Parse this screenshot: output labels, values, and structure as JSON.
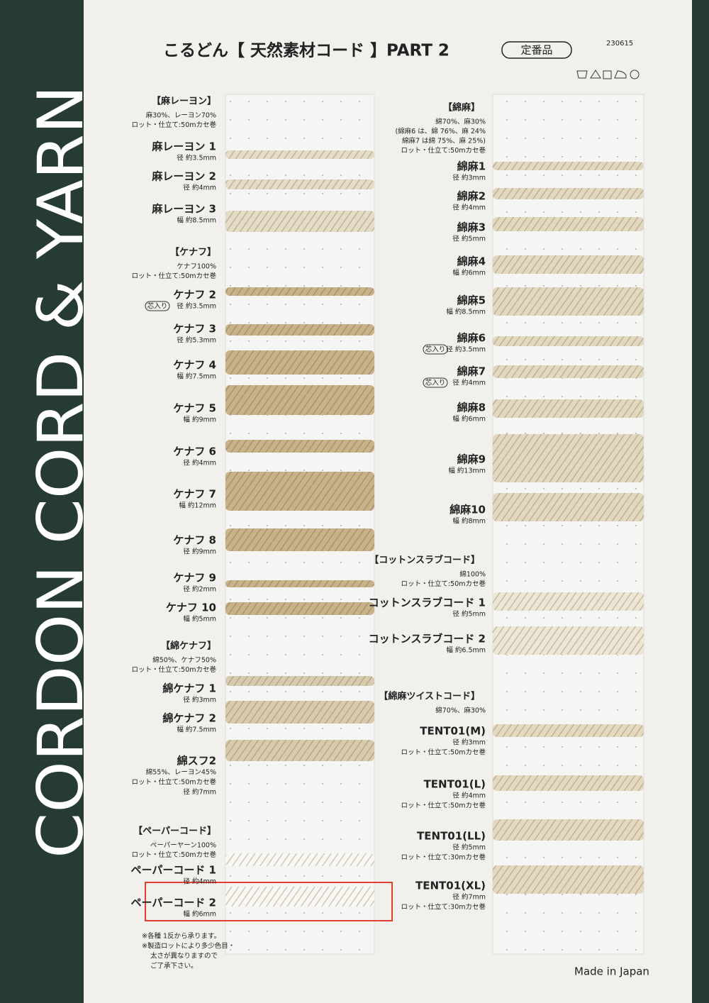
{
  "side_text": "CORDON CORD & YARN",
  "header": {
    "title": "こるどん【 天然素材コード 】PART 2",
    "badge": "定番品",
    "code": "230615"
  },
  "left": {
    "groups": [
      {
        "heading": "【麻レーヨン】",
        "desc": [
          "麻30%、レーヨン70%",
          "ロット・仕立て:50mカセ巻"
        ],
        "items": [
          {
            "name": "麻レーヨン 1",
            "specs": [
              "径 約3.5mm"
            ]
          },
          {
            "name": "麻レーヨン 2",
            "specs": [
              "径 約4mm"
            ]
          },
          {
            "name": "麻レーヨン 3",
            "specs": [
              "幅 約8.5mm"
            ]
          }
        ]
      },
      {
        "heading": "【ケナフ】",
        "desc": [
          "ケナフ100%",
          "ロット・仕立て:50mカセ巻"
        ],
        "items": [
          {
            "name": "ケナフ 2",
            "tag": "芯入り",
            "specs": [
              "径 約3.5mm"
            ]
          },
          {
            "name": "ケナフ 3",
            "specs": [
              "径 約5.3mm"
            ]
          },
          {
            "name": "ケナフ 4",
            "specs": [
              "幅 約7.5mm"
            ]
          },
          {
            "name": "ケナフ 5",
            "specs": [
              "幅 約9mm"
            ]
          },
          {
            "name": "ケナフ 6",
            "specs": [
              "径 約4mm"
            ]
          },
          {
            "name": "ケナフ 7",
            "specs": [
              "幅 約12mm"
            ]
          },
          {
            "name": "ケナフ 8",
            "specs": [
              "径 約9mm"
            ]
          },
          {
            "name": "ケナフ 9",
            "specs": [
              "径 約2mm"
            ]
          },
          {
            "name": "ケナフ 10",
            "specs": [
              "幅 約5mm"
            ]
          }
        ]
      },
      {
        "heading": "【綿ケナフ】",
        "desc": [
          "綿50%、ケナフ50%",
          "ロット・仕立て:50mカセ巻"
        ],
        "items": [
          {
            "name": "綿ケナフ 1",
            "specs": [
              "径 約3mm"
            ]
          },
          {
            "name": "綿ケナフ 2",
            "specs": [
              "幅 約7.5mm"
            ]
          },
          {
            "name": "綿スフ2",
            "specs": [
              "綿55%、レーヨン45%",
              "ロット・仕立て:50mカセ巻",
              "径 約7mm"
            ]
          }
        ]
      },
      {
        "heading": "【ペーパーコード】",
        "desc": [
          "ペーパーヤーン100%",
          "ロット・仕立て:50mカセ巻"
        ],
        "items": [
          {
            "name": "ペーパーコード 1",
            "specs": [
              "径 約4mm"
            ]
          },
          {
            "name": "ペーパーコード 2",
            "specs": [
              "幅 約6mm"
            ]
          }
        ]
      }
    ]
  },
  "notes": [
    "※各種 1反から承ります。",
    "※製造ロットにより多少色目・",
    "太さが異なりますので",
    "ご了承下さい。"
  ],
  "right": {
    "groups": [
      {
        "heading": "【綿麻】",
        "desc": [
          "綿70%、麻30%",
          "(綿麻6 は、綿 76%、麻 24%",
          "綿麻7 は綿 75%、麻 25%)",
          "ロット・仕立て:50mカセ巻"
        ],
        "items": [
          {
            "name": "綿麻1",
            "specs": [
              "径 約3mm"
            ]
          },
          {
            "name": "綿麻2",
            "specs": [
              "径 約4mm"
            ]
          },
          {
            "name": "綿麻3",
            "specs": [
              "径 約5mm"
            ]
          },
          {
            "name": "綿麻4",
            "specs": [
              "幅 約6mm"
            ]
          },
          {
            "name": "綿麻5",
            "specs": [
              "幅 約8.5mm"
            ]
          },
          {
            "name": "綿麻6",
            "tag": "芯入り",
            "specs": [
              "径 約3.5mm"
            ]
          },
          {
            "name": "綿麻7",
            "tag": "芯入り",
            "specs": [
              "径 約4mm"
            ]
          },
          {
            "name": "綿麻8",
            "specs": [
              "幅 約6mm"
            ]
          },
          {
            "name": "綿麻9",
            "specs": [
              "幅 約13mm"
            ]
          },
          {
            "name": "綿麻10",
            "specs": [
              "幅 約8mm"
            ]
          }
        ]
      },
      {
        "heading": "【コットンスラブコード】",
        "desc": [
          "綿100%",
          "ロット・仕立て:50mカセ巻"
        ],
        "items": [
          {
            "name": "コットンスラブコード 1",
            "specs": [
              "径 約5mm"
            ]
          },
          {
            "name": "コットンスラブコード 2",
            "specs": [
              "幅 約6.5mm"
            ]
          }
        ]
      },
      {
        "heading": "【綿麻ツイストコード】",
        "desc": [
          "綿70%、麻30%"
        ],
        "items": [
          {
            "name": "TENT01(M)",
            "specs": [
              "径 約3mm",
              "ロット・仕立て:50mカセ巻"
            ]
          },
          {
            "name": "TENT01(L)",
            "specs": [
              "径 約4mm",
              "ロット・仕立て:50mカセ巻"
            ]
          },
          {
            "name": "TENT01(LL)",
            "specs": [
              "径 約5mm",
              "ロット・仕立て:30mカセ巻"
            ]
          },
          {
            "name": "TENT01(XL)",
            "specs": [
              "径 約7mm",
              "ロット・仕立て:30mカセ巻"
            ]
          }
        ]
      }
    ]
  },
  "footer": "Made in Japan"
}
